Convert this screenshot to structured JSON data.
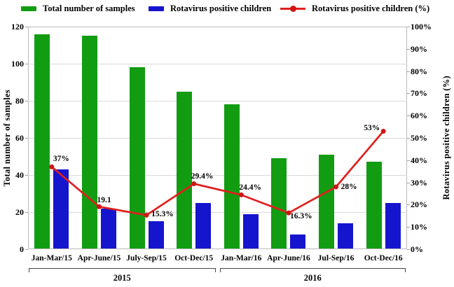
{
  "chart_data": {
    "type": "bar",
    "subtype": "combo-bar-line",
    "categories": [
      "Jan-Mar/15",
      "Apr-June/15",
      "July-Sep/15",
      "Oct-Dec/15",
      "Jan-Mar/16",
      "Apr-June/16",
      "Jul-Sep/16",
      "Oct-Dec/16"
    ],
    "year_groups": [
      {
        "label": "2015",
        "from": 0,
        "to": 3
      },
      {
        "label": "2016",
        "from": 4,
        "to": 7
      }
    ],
    "series": [
      {
        "name": "Total number of samples",
        "chart": "bar",
        "axis": "left",
        "color": "#129c12",
        "values": [
          116,
          115,
          98,
          85,
          78,
          49,
          51,
          47
        ]
      },
      {
        "name": "Rotavirus positive children",
        "chart": "bar",
        "axis": "left",
        "color": "#1515cd",
        "values": [
          43,
          22,
          15,
          25,
          19,
          8,
          14,
          25
        ]
      },
      {
        "name": "Rotavirus positive children (%)",
        "chart": "line",
        "axis": "right",
        "color": "#e01f1f",
        "marker_color": "#d01515",
        "values": [
          37,
          19.1,
          15.3,
          29.4,
          24.4,
          16.3,
          28,
          53
        ],
        "point_labels": [
          {
            "text": "37%",
            "dx": 2,
            "dy": -17
          },
          {
            "text": "19.1",
            "dx": -3,
            "dy": -15
          },
          {
            "text": "15.3%",
            "dx": 7,
            "dy": -7
          },
          {
            "text": "29.4%",
            "dx": -4,
            "dy": -17
          },
          {
            "text": "24.4%",
            "dx": -3,
            "dy": -16
          },
          {
            "text": "16.3%",
            "dx": 2,
            "dy": -1
          },
          {
            "text": "28%",
            "dx": 7,
            "dy": -6
          },
          {
            "text": "53%",
            "dx": -28,
            "dy": -10
          }
        ]
      }
    ],
    "left_axis": {
      "title": "Total number of samples",
      "min": 0,
      "max": 120,
      "step": 20,
      "ticks": [
        0,
        20,
        40,
        60,
        80,
        100,
        120
      ]
    },
    "right_axis": {
      "title": "Rotavirus positive children (%)",
      "min": 0,
      "max": 100,
      "step": 10,
      "suffix": "%",
      "ticks": [
        "0%",
        "10%",
        "20%",
        "30%",
        "40%",
        "50%",
        "60%",
        "70%",
        "80%",
        "90%",
        "100%"
      ]
    },
    "grid": true,
    "legend_position": "top",
    "colors": {
      "grid": "#d9d9d9",
      "frame": "#b9b9b9",
      "axis_text": "#000000",
      "background": "#ffffff"
    }
  }
}
